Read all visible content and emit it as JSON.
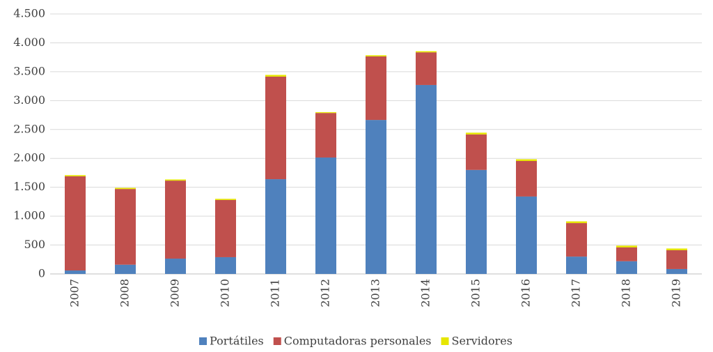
{
  "chart_data": {
    "type": "stacked_bar",
    "categories": [
      "2007",
      "2008",
      "2009",
      "2010",
      "2011",
      "2012",
      "2013",
      "2014",
      "2015",
      "2016",
      "2017",
      "2018",
      "2019"
    ],
    "series": [
      {
        "name": "Portátiles",
        "color": "#4f81bd",
        "values": [
          60,
          160,
          265,
          290,
          1640,
          2015,
          2665,
          3270,
          1800,
          1340,
          300,
          220,
          85
        ]
      },
      {
        "name": "Computadoras personales",
        "color": "#c0504d",
        "values": [
          1630,
          1310,
          1350,
          990,
          1775,
          770,
          1100,
          565,
          615,
          615,
          580,
          240,
          325
        ]
      },
      {
        "name": "Servidores",
        "color": "#e6e600",
        "values": [
          20,
          20,
          20,
          20,
          30,
          15,
          20,
          20,
          30,
          30,
          30,
          30,
          30
        ]
      }
    ],
    "ylim": [
      0,
      4500
    ],
    "yticks": [
      0,
      500,
      {
        "value": 1000,
        "label": "1.000"
      },
      {
        "value": 1500,
        "label": "1.500"
      },
      {
        "value": 2000,
        "label": "2.000"
      },
      {
        "value": 2500,
        "label": "2.500"
      },
      {
        "value": 3000,
        "label": "3.000"
      },
      {
        "value": 3500,
        "label": "3.500"
      },
      {
        "value": 4000,
        "label": "4.000"
      },
      {
        "value": 4500,
        "label": "4.500"
      }
    ],
    "grid": true,
    "legend": "bottom"
  }
}
